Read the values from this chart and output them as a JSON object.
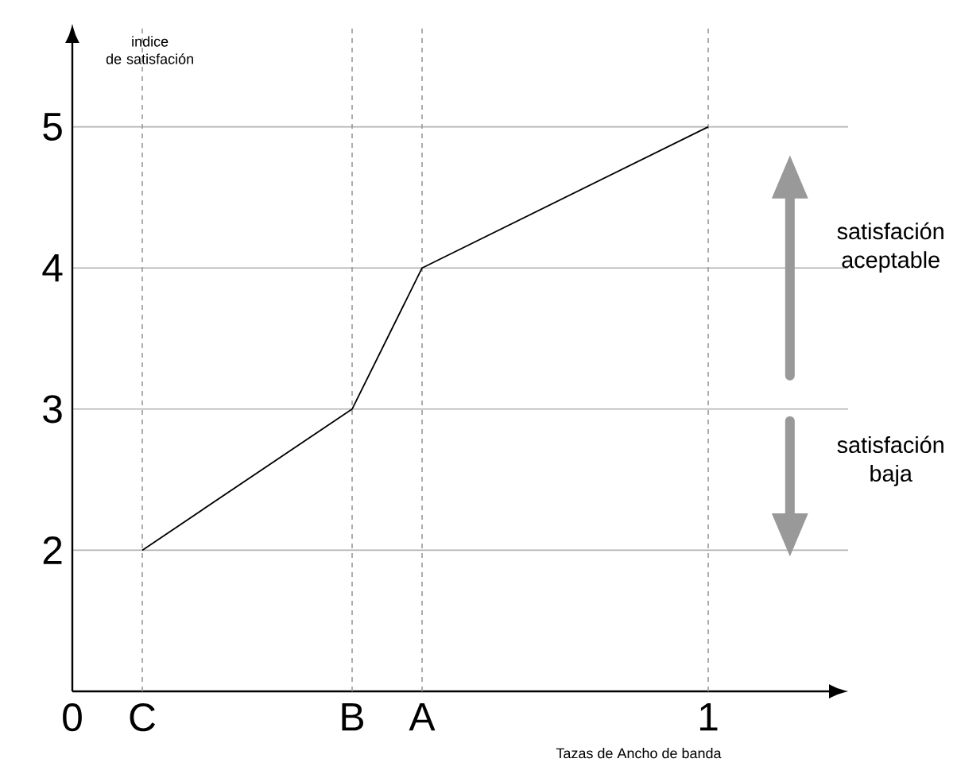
{
  "chart_data": {
    "type": "line",
    "xlabel": "Tazas de Ancho de banda",
    "ylabel": "indice\nde satisfación",
    "annotations": [
      "satisfación\naceptable",
      "satisfación\nbaja"
    ],
    "x": [
      0.11,
      0.44,
      0.55,
      1
    ],
    "series": [
      {
        "color": "#000000",
        "values": [
          2,
          3,
          4,
          5
        ]
      }
    ],
    "xlim": [
      0,
      1.22
    ],
    "ylim": [
      1,
      5.73
    ],
    "xticks": [
      0,
      {
        "value": 0.11,
        "label": "C"
      },
      {
        "value": 0.44,
        "label": "B"
      },
      {
        "value": 0.55,
        "label": "A"
      },
      1
    ],
    "yticks": [
      2,
      3,
      4,
      5
    ],
    "grid": "y",
    "ref_lines": [
      {
        "axis": "x",
        "value": 0.11,
        "color": "#999999",
        "line_style": "dashed"
      },
      {
        "axis": "x",
        "value": 0.44,
        "color": "#999999",
        "line_style": "dashed"
      },
      {
        "axis": "x",
        "value": 0.55,
        "color": "#999999",
        "line_style": "dashed"
      },
      {
        "axis": "x",
        "value": 1,
        "color": "#999999",
        "line_style": "dashed"
      }
    ]
  }
}
